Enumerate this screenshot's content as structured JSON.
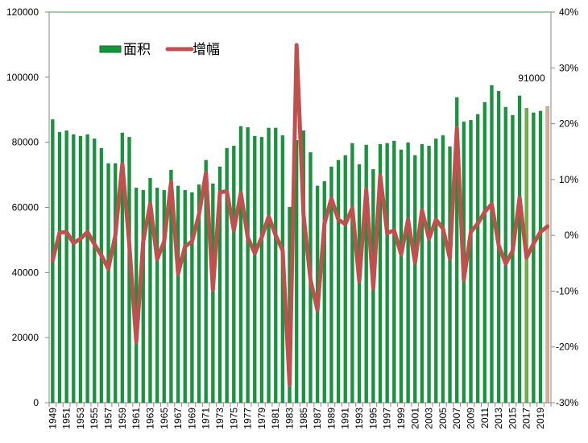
{
  "chart_data": {
    "type": "bar+line",
    "title": "",
    "legend": {
      "position": "top-left",
      "entries": [
        "面积",
        "增幅"
      ]
    },
    "categories": [
      1949,
      1950,
      1951,
      1952,
      1953,
      1954,
      1955,
      1956,
      1957,
      1958,
      1959,
      1960,
      1961,
      1962,
      1963,
      1964,
      1965,
      1966,
      1967,
      1968,
      1969,
      1970,
      1971,
      1972,
      1973,
      1974,
      1975,
      1976,
      1977,
      1978,
      1979,
      1980,
      1981,
      1982,
      1983,
      1984,
      1985,
      1986,
      1987,
      1988,
      1989,
      1990,
      1991,
      1992,
      1993,
      1994,
      1995,
      1996,
      1997,
      1998,
      1999,
      2000,
      2001,
      2002,
      2003,
      2004,
      2005,
      2006,
      2007,
      2008,
      2009,
      2010,
      2011,
      2012,
      2013,
      2014,
      2015,
      2016,
      2017,
      2018,
      2019,
      2020
    ],
    "series": [
      {
        "name": "面积",
        "type": "bar",
        "axis": "left",
        "color": "#14973c",
        "values": [
          87000,
          83100,
          83600,
          82400,
          81900,
          82400,
          81100,
          78200,
          73500,
          73500,
          82900,
          81600,
          66000,
          65300,
          69000,
          66000,
          65300,
          71500,
          66600,
          65300,
          64600,
          67000,
          74500,
          67300,
          72500,
          78200,
          78900,
          84900,
          84600,
          81900,
          81600,
          84400,
          84400,
          82100,
          60100,
          80600,
          83600,
          76900,
          66600,
          68000,
          72500,
          74500,
          76000,
          79700,
          73200,
          79200,
          71700,
          79400,
          79700,
          80400,
          77700,
          79900,
          76000,
          79400,
          78900,
          81100,
          82100,
          78700,
          93800,
          86300,
          86800,
          88600,
          92300,
          97500,
          95700,
          90800,
          88300,
          94300,
          90500,
          89100,
          89600,
          91000
        ]
      },
      {
        "name": "增幅",
        "type": "line",
        "axis": "right",
        "unit": "%",
        "color": "#c0504d",
        "values": [
          -4.5,
          0.5,
          0.6,
          -1.4,
          -0.6,
          0.6,
          -1.6,
          -3.6,
          -6.0,
          0.0,
          12.8,
          -1.6,
          -19.1,
          -1.1,
          5.7,
          -4.3,
          -1.1,
          9.5,
          -6.9,
          -2.0,
          -1.1,
          3.7,
          11.2,
          -9.7,
          7.7,
          7.9,
          0.9,
          7.6,
          -0.4,
          -3.2,
          -0.4,
          3.4,
          0.0,
          -2.7,
          -26.8,
          34.1,
          3.7,
          -8.0,
          -13.4,
          2.1,
          6.6,
          2.8,
          2.0,
          4.9,
          -8.2,
          8.2,
          -9.5,
          10.7,
          0.4,
          0.9,
          -3.4,
          2.8,
          -4.9,
          4.5,
          -0.6,
          2.8,
          1.2,
          -4.1,
          19.2,
          -8.0,
          0.6,
          2.1,
          4.2,
          5.6,
          -1.8,
          -5.1,
          -2.8,
          6.8,
          -4.0,
          -1.5,
          0.6,
          1.6
        ]
      }
    ],
    "highlight_colors": {
      "2017": "#6cb33f",
      "2020": "#d9b095"
    },
    "data_labels": [
      {
        "category": 2020,
        "text": "91000"
      }
    ],
    "y_left": {
      "min": 0,
      "max": 120000,
      "ticks": [
        "0",
        "20000",
        "40000",
        "60000",
        "80000",
        "100000",
        "120000"
      ]
    },
    "y_right": {
      "min": -30,
      "max": 40,
      "ticks": [
        "-30%",
        "-20%",
        "-10%",
        "0%",
        "10%",
        "20%",
        "30%",
        "40%"
      ]
    },
    "x_tick_labels": [
      "1949",
      "1951",
      "1953",
      "1955",
      "1957",
      "1959",
      "1961",
      "1963",
      "1965",
      "1967",
      "1969",
      "1971",
      "1973",
      "1975",
      "1977",
      "1979",
      "1981",
      "1983",
      "1985",
      "1987",
      "1989",
      "1991",
      "1993",
      "1995",
      "1997",
      "1999",
      "2001",
      "2003",
      "2005",
      "2007",
      "2009",
      "2011",
      "2013",
      "2015",
      "2017",
      "2019"
    ],
    "grid": false
  }
}
